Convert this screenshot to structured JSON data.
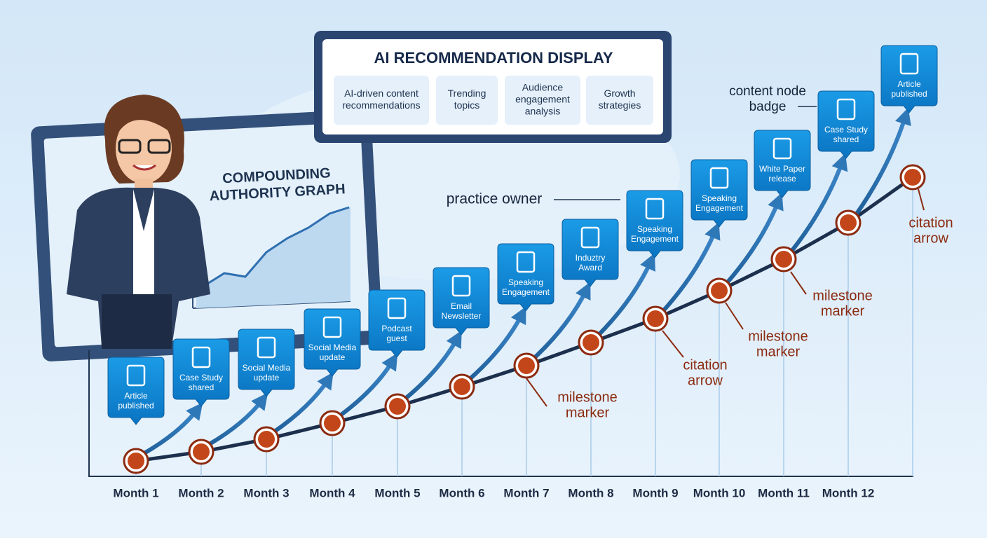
{
  "panel": {
    "title": "AI RECOMMENDATION DISPLAY",
    "items": [
      [
        "AI-driven content",
        "recommendations"
      ],
      [
        "Trending",
        "topics"
      ],
      [
        "Audience",
        "engagement",
        "analysis"
      ],
      [
        "Growth",
        "strategies"
      ]
    ]
  },
  "board": {
    "title_lines": [
      "COMPOUNDING",
      "AUTHORITY GRAPH"
    ]
  },
  "months": [
    "Month 1",
    "Month 2",
    "Month 3",
    "Month 4",
    "Month 5",
    "Month 6",
    "Month 7",
    "Month 8",
    "Month 9",
    "Month 10",
    "Month 11",
    "Month 12"
  ],
  "badges": [
    [
      "Article",
      "published"
    ],
    [
      "Case Study",
      "shared"
    ],
    [
      "Social Media",
      "update"
    ],
    [
      "Social Media",
      "update"
    ],
    [
      "Podcast",
      "guest"
    ],
    [
      "Email",
      "Newsletter"
    ],
    [
      "Speaking",
      "Engagement"
    ],
    [
      "Induztry",
      "Award"
    ],
    [
      "Speaking",
      "Engagement"
    ],
    [
      "Speaking",
      "Engagement"
    ],
    [
      "White Paper",
      "release"
    ],
    [
      "Case Study",
      "shared"
    ],
    [
      "Article",
      "published"
    ]
  ],
  "annotations": {
    "practice_owner": [
      "practice owner"
    ],
    "content_node_badge": [
      "content node",
      "badge"
    ],
    "milestone_markers": [
      [
        "milestone",
        "marker"
      ],
      [
        "milestone",
        "marker"
      ],
      [
        "milestone",
        "marker"
      ]
    ],
    "citation_arrows": [
      [
        "citation",
        "arrow"
      ],
      [
        "citation",
        "arrow"
      ]
    ]
  }
}
